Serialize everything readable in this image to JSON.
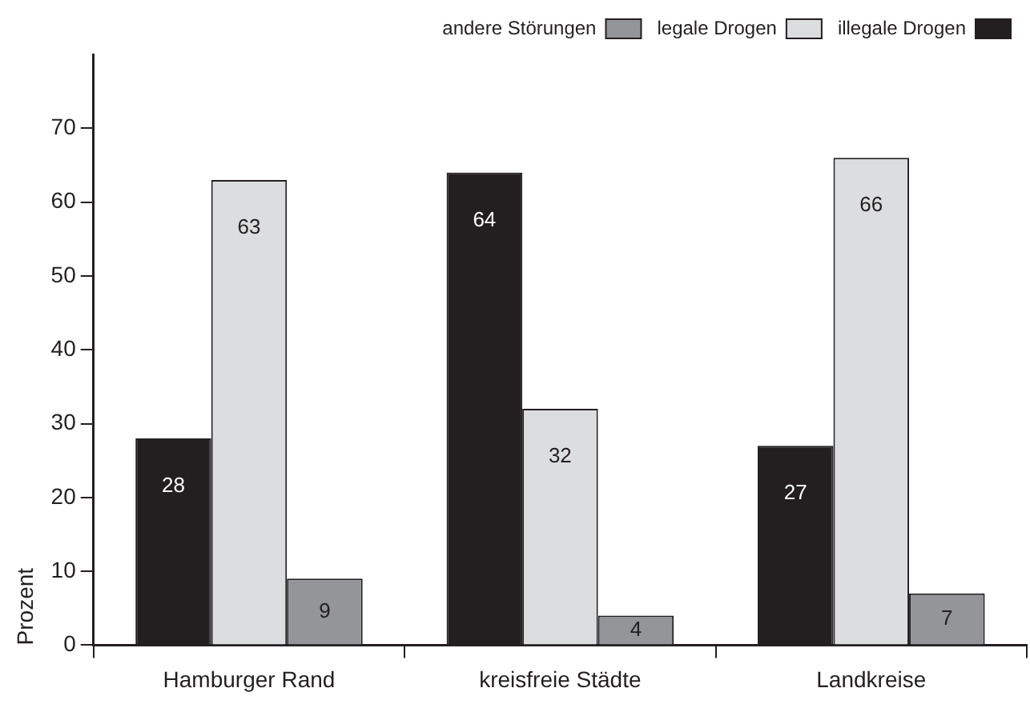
{
  "chart_data": {
    "type": "bar",
    "ylabel": "Prozent",
    "categories": [
      "Hamburger Rand",
      "kreisfreie Städte",
      "Landkreise"
    ],
    "series": [
      {
        "name": "illegale Drogen",
        "color": "#231f20",
        "values": [
          28,
          64,
          27
        ]
      },
      {
        "name": "legale Drogen",
        "color": "#dcddde",
        "values": [
          63,
          32,
          66
        ]
      },
      {
        "name": "andere Störungen",
        "color": "#939598",
        "values": [
          9,
          4,
          7
        ]
      }
    ],
    "ylim": [
      0,
      80
    ],
    "yticks": [
      0,
      10,
      20,
      30,
      40,
      50,
      60,
      70
    ],
    "data_labels": true,
    "legend": "top right",
    "grid": false
  }
}
